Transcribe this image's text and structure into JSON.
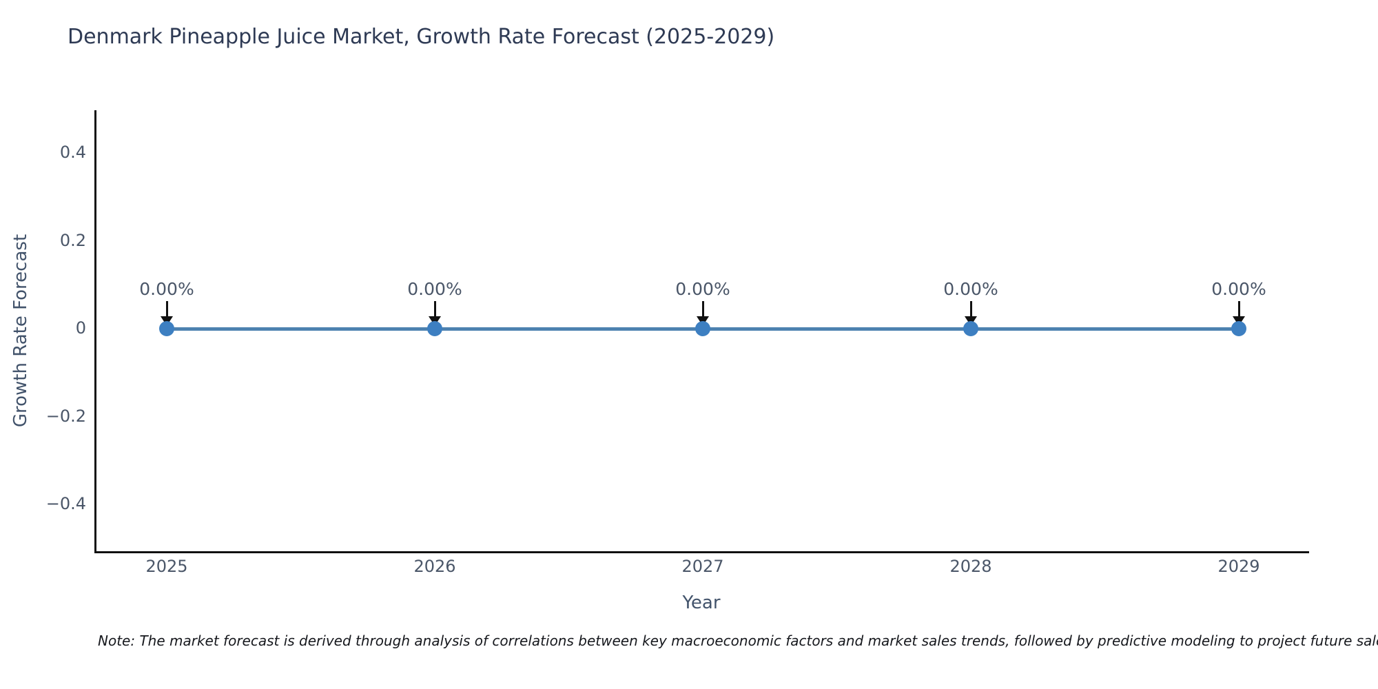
{
  "title": "Denmark Pineapple Juice Market, Growth Rate Forecast (2025-2029)",
  "note": "Note: The market forecast is derived through analysis of correlations between key macroeconomic factors and market sales trends, followed by predictive modeling to project future sales",
  "chart_data": {
    "type": "line",
    "title": "Denmark Pineapple Juice Market, Growth Rate Forecast (2025-2029)",
    "xlabel": "Year",
    "ylabel": "Growth Rate Forecast",
    "x": [
      2025,
      2026,
      2027,
      2028,
      2029
    ],
    "series": [
      {
        "name": "Growth Rate Forecast",
        "values": [
          0,
          0,
          0,
          0,
          0
        ]
      }
    ],
    "point_labels": [
      "0.00%",
      "0.00%",
      "0.00%",
      "0.00%",
      "0.00%"
    ],
    "x_ticks": [
      "2025",
      "2026",
      "2027",
      "2028",
      "2029"
    ],
    "y_ticks": [
      "0.4",
      "0.2",
      "0",
      "−0.2",
      "−0.4"
    ],
    "ylim": [
      -0.5,
      0.5
    ],
    "grid": false,
    "legend": false,
    "colors": {
      "line": "#4d82b0",
      "marker": "#3d7fc1",
      "arrow": "#111111",
      "spine": "#111111",
      "title_text": "#2e3a54",
      "tick_text": "#4a5668",
      "axis_title_text": "#42536b"
    }
  }
}
